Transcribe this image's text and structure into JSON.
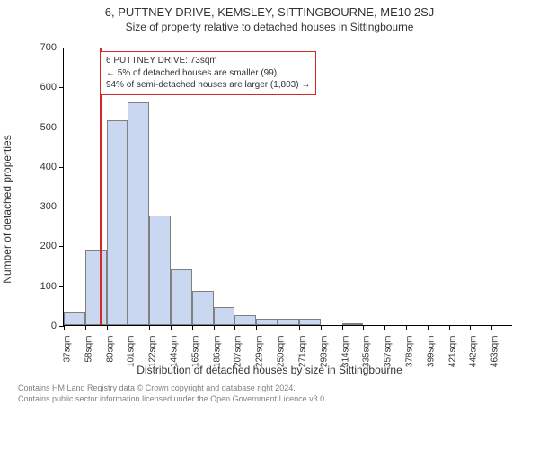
{
  "header": {
    "title": "6, PUTTNEY DRIVE, KEMSLEY, SITTINGBOURNE, ME10 2SJ",
    "subtitle": "Size of property relative to detached houses in Sittingbourne"
  },
  "chart": {
    "type": "histogram",
    "y_label": "Number of detached properties",
    "x_label": "Distribution of detached houses by size in Sittingbourne",
    "ylim": [
      0,
      700
    ],
    "ytick_step": 100,
    "bar_fill": "#c9d8f0",
    "bar_border": "#808080",
    "marker_color": "#d62728",
    "marker_value": 73,
    "background_color": "#ffffff",
    "axis_color": "#000000",
    "tick_fontsize": 11,
    "label_fontsize": 12,
    "x_tick_width": 21.3,
    "x_tick_unit": "sqm",
    "x_start": 37,
    "bars": [
      35,
      190,
      515,
      560,
      275,
      140,
      85,
      45,
      25,
      15,
      15,
      15,
      0,
      5,
      0,
      0,
      0,
      0,
      0,
      0,
      0
    ],
    "x_tick_labels": [
      "37sqm",
      "58sqm",
      "80sqm",
      "101sqm",
      "122sqm",
      "144sqm",
      "165sqm",
      "186sqm",
      "207sqm",
      "229sqm",
      "250sqm",
      "271sqm",
      "293sqm",
      "314sqm",
      "335sqm",
      "357sqm",
      "378sqm",
      "399sqm",
      "421sqm",
      "442sqm",
      "463sqm"
    ],
    "info_box": {
      "line1": "6 PUTTNEY DRIVE: 73sqm",
      "line2": "← 5% of detached houses are smaller (99)",
      "line3": "94% of semi-detached houses are larger (1,803) →"
    }
  },
  "footer": {
    "line1": "Contains HM Land Registry data © Crown copyright and database right 2024.",
    "line2": "Contains public sector information licensed under the Open Government Licence v3.0."
  }
}
